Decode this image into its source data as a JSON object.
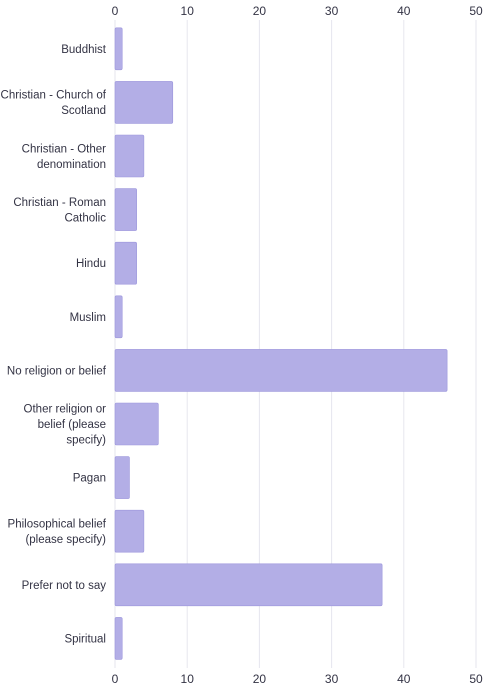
{
  "chart_data": {
    "type": "bar",
    "orientation": "horizontal",
    "title": "",
    "xlabel": "",
    "ylabel": "",
    "xlim": [
      0,
      50
    ],
    "x_ticks": [
      0,
      10,
      20,
      30,
      40,
      50
    ],
    "grid": true,
    "bar_color": "#b3aee6",
    "categories": [
      [
        "Buddhist"
      ],
      [
        "Christian - Church of",
        "Scotland"
      ],
      [
        "Christian - Other",
        "denomination"
      ],
      [
        "Christian - Roman",
        "Catholic"
      ],
      [
        "Hindu"
      ],
      [
        "Muslim"
      ],
      [
        "No religion or belief"
      ],
      [
        "Other religion or",
        "belief (please",
        "specify)"
      ],
      [
        "Pagan"
      ],
      [
        "Philosophical belief",
        "(please specify)"
      ],
      [
        "Prefer not to say"
      ],
      [
        "Spiritual"
      ]
    ],
    "values": [
      1,
      8,
      4,
      3,
      3,
      1,
      46,
      6,
      2,
      4,
      37,
      1
    ]
  }
}
